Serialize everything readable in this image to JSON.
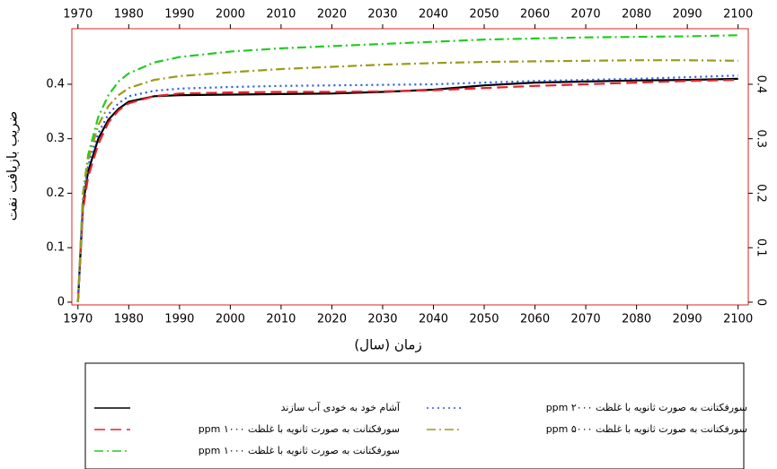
{
  "chart_data": {
    "type": "line",
    "xlabel": "زمان (سال)",
    "ylabel": "ضریب بازیافت نفت",
    "x": [
      1970,
      1971,
      1972,
      1974,
      1976,
      1978,
      1980,
      1985,
      1990,
      2000,
      2010,
      2020,
      2030,
      2040,
      2050,
      2060,
      2070,
      2080,
      2090,
      2100
    ],
    "series": [
      {
        "name": "آشام خود به خودی آب سازند",
        "color": "#000000",
        "dash": "solid",
        "values": [
          0,
          0.18,
          0.24,
          0.3,
          0.335,
          0.355,
          0.368,
          0.378,
          0.38,
          0.381,
          0.382,
          0.383,
          0.386,
          0.39,
          0.398,
          0.403,
          0.405,
          0.407,
          0.408,
          0.41
        ]
      },
      {
        "name": "سورفکتانت به صورت ثانویه با غلظت ۱۰۰۰ ppm",
        "color": "#e8202a",
        "dash": "dashed",
        "values": [
          0,
          0.17,
          0.23,
          0.29,
          0.33,
          0.352,
          0.365,
          0.378,
          0.383,
          0.385,
          0.386,
          0.386,
          0.387,
          0.389,
          0.393,
          0.397,
          0.4,
          0.403,
          0.406,
          0.408
        ]
      },
      {
        "name": "سورفکتانت به صورت ثانویه با غلظت ۱۰۰۰ ppm",
        "color": "#22cc22",
        "dash": "dashdot",
        "values": [
          0,
          0.2,
          0.27,
          0.34,
          0.38,
          0.405,
          0.42,
          0.44,
          0.45,
          0.46,
          0.466,
          0.47,
          0.474,
          0.478,
          0.482,
          0.484,
          0.486,
          0.487,
          0.488,
          0.49
        ]
      },
      {
        "name": "سورفکتانت به صورت ثانویه با غلظت ۲۰۰۰ ppm",
        "color": "#1f5fe0",
        "dash": "dotted",
        "values": [
          0,
          0.19,
          0.25,
          0.31,
          0.345,
          0.365,
          0.378,
          0.388,
          0.392,
          0.395,
          0.397,
          0.398,
          0.399,
          0.4,
          0.403,
          0.406,
          0.408,
          0.41,
          0.413,
          0.416
        ]
      },
      {
        "name": "سورفکتانت به صورت ثانویه با غلظت ۵۰۰۰ ppm",
        "color": "#9a9a1a",
        "dash": "dashdot",
        "values": [
          0,
          0.2,
          0.26,
          0.325,
          0.36,
          0.38,
          0.393,
          0.408,
          0.415,
          0.422,
          0.428,
          0.432,
          0.436,
          0.439,
          0.441,
          0.442,
          0.443,
          0.444,
          0.444,
          0.443
        ]
      }
    ],
    "xlim": [
      1968.8,
      2102
    ],
    "xticks": [
      1970,
      1980,
      1990,
      2000,
      2010,
      2020,
      2030,
      2040,
      2050,
      2060,
      2070,
      2080,
      2090,
      2100
    ],
    "ylim": [
      -0.005,
      0.502
    ],
    "yticks": [
      0,
      0.1,
      0.2,
      0.3,
      0.4
    ],
    "y2lim": [
      -0.005,
      0.502
    ],
    "y2ticks": [
      0,
      0.1,
      0.2,
      0.3,
      0.4
    ]
  }
}
